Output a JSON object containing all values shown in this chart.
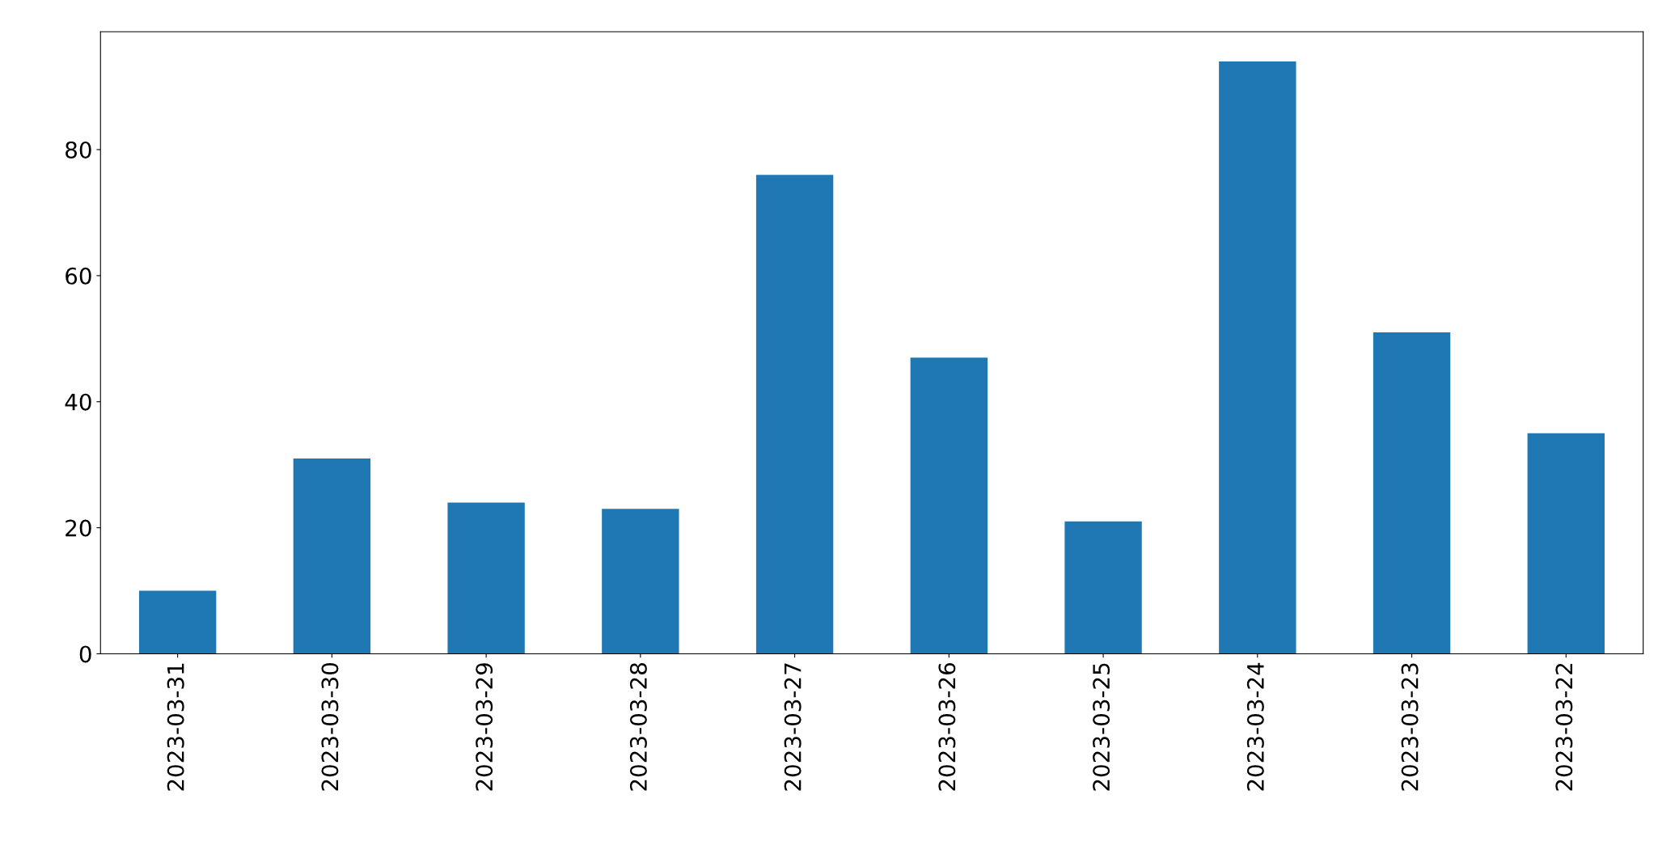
{
  "chart_data": {
    "type": "bar",
    "categories": [
      "2023-03-31",
      "2023-03-30",
      "2023-03-29",
      "2023-03-28",
      "2023-03-27",
      "2023-03-26",
      "2023-03-25",
      "2023-03-24",
      "2023-03-23",
      "2023-03-22"
    ],
    "values": [
      10,
      31,
      24,
      23,
      76,
      47,
      21,
      94,
      51,
      35
    ],
    "color": "#1f77b4",
    "ylim": [
      0,
      98.7
    ],
    "yticks": [
      0,
      20,
      40,
      60,
      80
    ],
    "grid": false,
    "legend": false
  }
}
